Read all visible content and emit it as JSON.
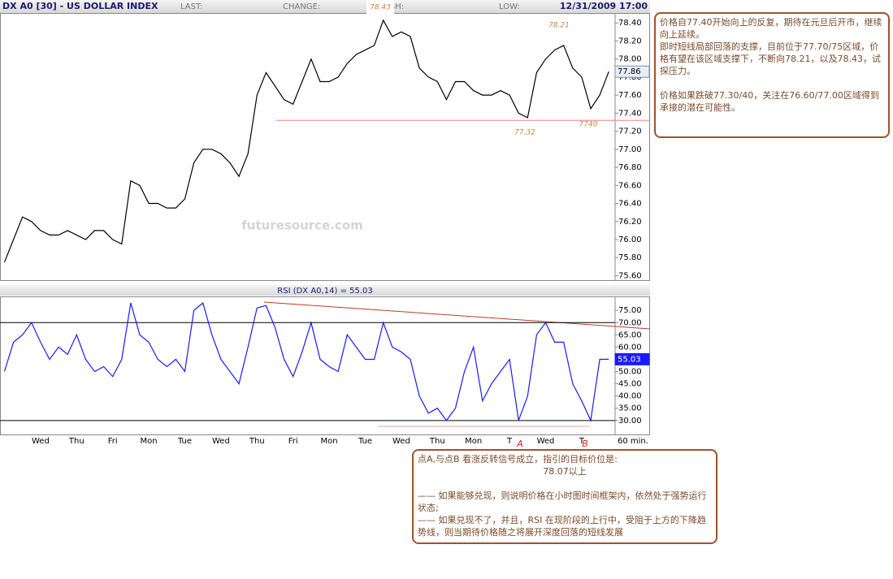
{
  "header": {
    "last": "LAST:",
    "change": "CHANGE:",
    "high": "HIGH:",
    "low": "LOW:",
    "date": "12/31/2009 17:00"
  },
  "watermark": "futuresource.com",
  "chart_data": [
    {
      "type": "line",
      "title": "DX A0 [30] - US DOLLAR INDEX",
      "color": "#000000",
      "values": [
        75.75,
        76.0,
        76.25,
        76.2,
        76.1,
        76.05,
        76.05,
        76.1,
        76.05,
        76.0,
        76.1,
        76.1,
        76.0,
        75.95,
        76.65,
        76.6,
        76.4,
        76.4,
        76.35,
        76.35,
        76.45,
        76.85,
        77.0,
        77.0,
        76.95,
        76.85,
        76.7,
        76.95,
        77.6,
        77.85,
        77.7,
        77.55,
        77.5,
        77.75,
        78.0,
        77.75,
        77.75,
        77.8,
        77.95,
        78.05,
        78.1,
        78.15,
        78.43,
        78.25,
        78.3,
        78.25,
        77.9,
        77.8,
        77.75,
        77.55,
        77.75,
        77.75,
        77.65,
        77.6,
        77.6,
        77.65,
        77.6,
        77.4,
        77.35,
        77.85,
        78.0,
        78.1,
        78.15,
        77.9,
        77.8,
        77.45,
        77.6,
        77.86
      ],
      "ylim": [
        75.55,
        78.51
      ],
      "yticks": [
        {
          "value": 75.6,
          "label": "75.60"
        },
        {
          "value": 75.8,
          "label": "75.80"
        },
        {
          "value": 76.0,
          "label": "76.00"
        },
        {
          "value": 76.2,
          "label": "76.20"
        },
        {
          "value": 76.4,
          "label": "76.40"
        },
        {
          "value": 76.6,
          "label": "76.60"
        },
        {
          "value": 76.8,
          "label": "76.80"
        },
        {
          "value": 77.0,
          "label": "77.00"
        },
        {
          "value": 77.2,
          "label": "77.20"
        },
        {
          "value": 77.4,
          "label": "77.40"
        },
        {
          "value": 77.6,
          "label": "77.60"
        },
        {
          "value": 77.8,
          "label": "77.80"
        },
        {
          "value": 78.0,
          "label": "78.00"
        },
        {
          "value": 78.2,
          "label": "78.20"
        },
        {
          "value": 78.4,
          "label": "78.40"
        }
      ],
      "annotations": [
        {
          "text": "78.43",
          "value": 78.43
        },
        {
          "text": "78.21",
          "value": 78.21
        },
        {
          "text": "77.32",
          "value": 77.32
        },
        {
          "text": "7740"
        }
      ]
    },
    {
      "type": "line",
      "title": "RSI (DX A0,14) = 55.03",
      "color": "#1a1aff",
      "x_unit": "60 min.",
      "categories": [
        null,
        null,
        null,
        null,
        "Wed",
        null,
        null,
        null,
        "Thu",
        null,
        null,
        null,
        "Fri",
        null,
        null,
        null,
        "Mon",
        null,
        null,
        null,
        "Tue",
        null,
        null,
        null,
        "Wed",
        null,
        null,
        null,
        "Thu",
        null,
        null,
        null,
        "Fri",
        null,
        null,
        null,
        "Mon",
        null,
        null,
        null,
        "Tue",
        null,
        null,
        null,
        "Wed",
        null,
        null,
        null,
        "Thu",
        null,
        null,
        null,
        "Mon",
        null,
        null,
        null,
        "T",
        null,
        null,
        null,
        "Wed",
        null,
        null,
        null,
        "T",
        null,
        null,
        null
      ],
      "values": [
        50,
        62,
        65,
        70,
        62,
        55,
        60,
        57,
        65,
        55,
        50,
        52,
        48,
        55,
        78,
        65,
        62,
        55,
        52,
        55,
        50,
        75,
        78,
        65,
        55,
        50,
        45,
        60,
        76,
        77,
        68,
        55,
        48,
        58,
        70,
        55,
        52,
        50,
        65,
        60,
        55,
        55,
        70,
        60,
        58,
        55,
        40,
        33,
        35,
        30,
        35,
        50,
        60,
        38,
        45,
        50,
        55,
        30,
        40,
        65,
        70,
        62,
        62,
        45,
        38,
        30,
        55,
        55.03
      ],
      "ylim": [
        24.3,
        80.7
      ],
      "yticks": [
        {
          "value": 30,
          "label": "30.00"
        },
        {
          "value": 35,
          "label": "35.00"
        },
        {
          "value": 40,
          "label": "40.00"
        },
        {
          "value": 45,
          "label": "45.00"
        },
        {
          "value": 50,
          "label": "50.00"
        },
        {
          "value": 55,
          "label": "55.00"
        },
        {
          "value": 60,
          "label": "60.00"
        },
        {
          "value": 65,
          "label": "65.00"
        },
        {
          "value": 70,
          "label": "70.00"
        },
        {
          "value": 75,
          "label": "75.00"
        }
      ],
      "ref_lines": [
        70,
        30
      ],
      "annotations": [
        "A",
        "B"
      ]
    }
  ],
  "notes": {
    "right": [
      "价格自77.40开始向上的反复，期待在元旦后开市，继续向上延续。",
      "即时短线局部回落的支撑，目前位于77.70/75区域，价格有望在该区域支撑下，不断向78.21，以及78.43，试探压力。",
      "价格如果跌破77.30/40，关注在76.60/77.00区域得到承接的潜在可能性。"
    ],
    "bottom": [
      "点A,与点B 看涨反转信号成立，指引的目标价位是:",
      "78.07以上",
      "—— 如果能够兑现，则说明价格在小时图时间框架内，依然处于强势运行状态;",
      "—— 如果兑现不了，并且，RSI 在现阶段的上行中，受阻于上方的下降趋势线，则当期待价格随之将展开深度回落的短线发展"
    ]
  }
}
